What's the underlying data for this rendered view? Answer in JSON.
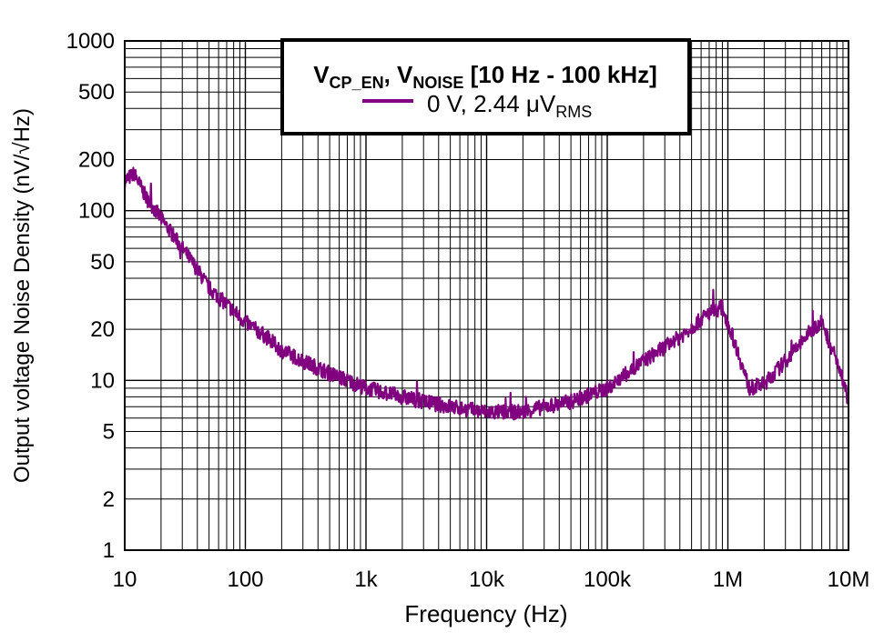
{
  "chart_data": {
    "type": "line",
    "title": "",
    "xlabel": "Frequency (Hz)",
    "ylabel": "Output voltage Noise Density (nV/√Hz)",
    "x_scale": "log",
    "y_scale": "log",
    "xlim": [
      10,
      10000000
    ],
    "ylim": [
      1,
      1000
    ],
    "grid": true,
    "x_ticks": [
      {
        "value": 10,
        "label": "10"
      },
      {
        "value": 100,
        "label": "100"
      },
      {
        "value": 1000,
        "label": "1k"
      },
      {
        "value": 10000,
        "label": "10k"
      },
      {
        "value": 100000,
        "label": "100k"
      },
      {
        "value": 1000000,
        "label": "1M"
      },
      {
        "value": 10000000,
        "label": "10M"
      }
    ],
    "y_ticks": [
      {
        "value": 1,
        "label": "1"
      },
      {
        "value": 2,
        "label": "2"
      },
      {
        "value": 5,
        "label": "5"
      },
      {
        "value": 10,
        "label": "10"
      },
      {
        "value": 20,
        "label": "20"
      },
      {
        "value": 50,
        "label": "50"
      },
      {
        "value": 100,
        "label": "100"
      },
      {
        "value": 200,
        "label": "200"
      },
      {
        "value": 500,
        "label": "500"
      },
      {
        "value": 1000,
        "label": "1000"
      }
    ],
    "legend": {
      "placement": "top-center",
      "title_parts": [
        {
          "text": "V",
          "sub": "CP_EN"
        },
        {
          "text": ", V",
          "sub": "NOISE"
        },
        {
          "text": " [10 Hz - 100 kHz]",
          "sub": ""
        }
      ],
      "entry_text": "0 V, 2.44 μV",
      "entry_sub": "RMS"
    },
    "series": [
      {
        "name": "0 V, 2.44 μVRMS",
        "color": "#800080",
        "x": [
          10,
          12,
          15,
          20,
          30,
          40,
          50,
          70,
          100,
          150,
          200,
          300,
          500,
          700,
          1000,
          2000,
          3000,
          5000,
          10000,
          20000,
          30000,
          50000,
          100000,
          200000,
          400000,
          700000,
          900000,
          1200000,
          1500000,
          2000000,
          3000000,
          5000000,
          6000000,
          8000000,
          10000000
        ],
        "y": [
          150,
          165,
          120,
          90,
          60,
          45,
          35,
          28,
          22,
          18,
          15,
          13,
          11,
          10,
          9,
          8,
          7.5,
          7,
          6.5,
          6.5,
          7,
          7.5,
          9,
          13,
          18,
          25,
          27,
          15,
          9,
          9.5,
          13,
          20,
          22,
          13,
          8
        ]
      }
    ]
  }
}
